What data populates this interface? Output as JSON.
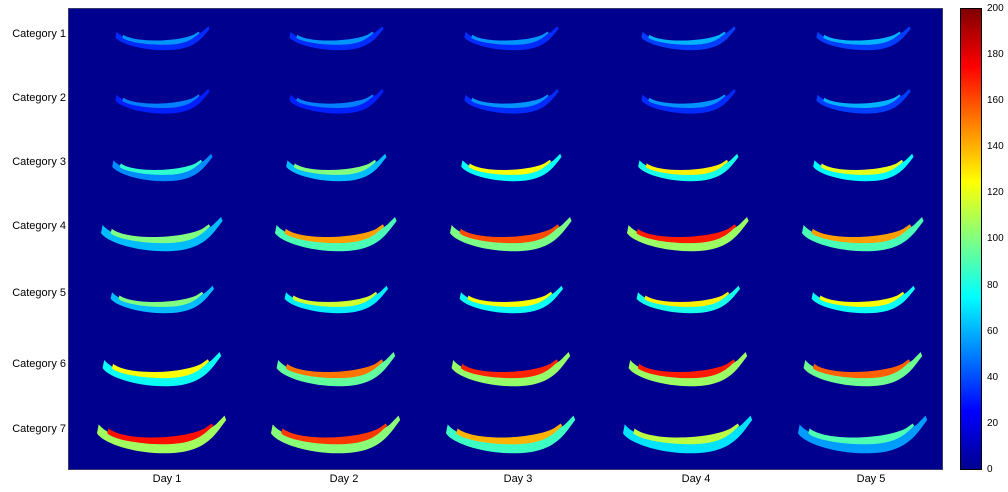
{
  "rows": [
    {
      "label": "Category 1",
      "levels": [
        0.27,
        0.27,
        0.27,
        0.3,
        0.3
      ]
    },
    {
      "label": "Category 2",
      "levels": [
        0.25,
        0.25,
        0.27,
        0.27,
        0.3
      ]
    },
    {
      "label": "Category 3",
      "levels": [
        0.42,
        0.5,
        0.62,
        0.64,
        0.6
      ]
    },
    {
      "label": "Category 4",
      "levels": [
        0.5,
        0.72,
        0.8,
        0.85,
        0.72
      ]
    },
    {
      "label": "Category 5",
      "levels": [
        0.5,
        0.58,
        0.62,
        0.64,
        0.62
      ]
    },
    {
      "label": "Category 6",
      "levels": [
        0.62,
        0.76,
        0.84,
        0.85,
        0.78
      ]
    },
    {
      "label": "Category 7",
      "levels": [
        0.86,
        0.82,
        0.7,
        0.56,
        0.45
      ]
    }
  ],
  "columns": [
    "Day 1",
    "Day 2",
    "Day 3",
    "Day 4",
    "Day 5"
  ],
  "colorbar": {
    "ticks": [
      "0",
      "20",
      "40",
      "60",
      "80",
      "100",
      "120",
      "140",
      "160",
      "180",
      "200"
    ],
    "min": 0,
    "max": 200,
    "colormap": "jet"
  },
  "colors": {
    "background": "#00008f"
  }
}
